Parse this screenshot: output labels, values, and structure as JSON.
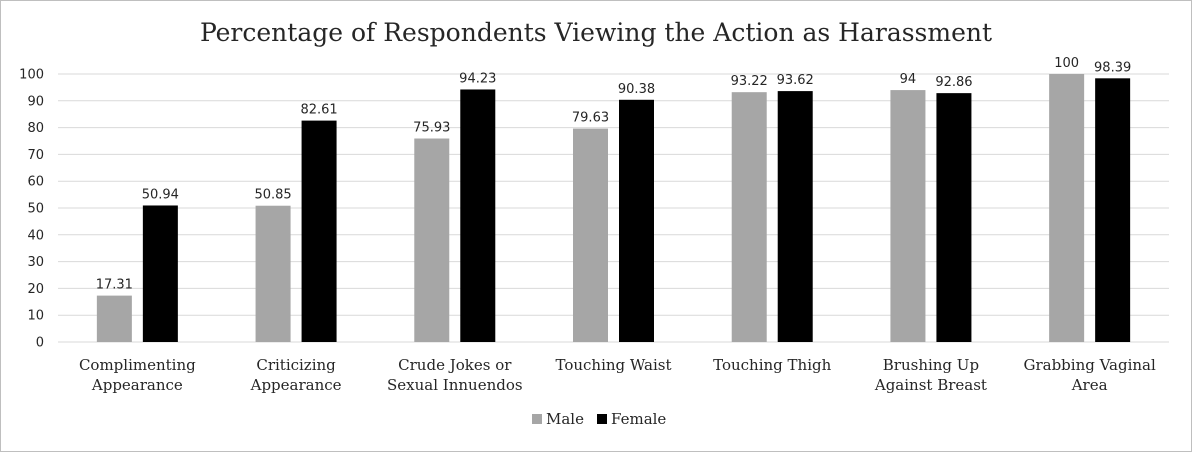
{
  "chart_data": {
    "type": "bar",
    "title": "Percentage of Respondents Viewing the Action as Harassment",
    "xlabel": "",
    "ylabel": "",
    "ylim": [
      0,
      100
    ],
    "yticks": [
      "0",
      "10",
      "20",
      "30",
      "40",
      "50",
      "60",
      "70",
      "80",
      "90",
      "100"
    ],
    "categories": [
      [
        "Complimenting",
        "Appearance"
      ],
      [
        "Criticizing",
        "Appearance"
      ],
      [
        "Crude Jokes or",
        "Sexual Innuendos"
      ],
      [
        "Touching Waist"
      ],
      [
        "Touching Thigh"
      ],
      [
        "Brushing Up",
        "Against Breast"
      ],
      [
        "Grabbing Vaginal",
        "Area"
      ]
    ],
    "series": [
      {
        "name": "Male",
        "color": "#a6a6a6",
        "values": [
          17.31,
          50.85,
          75.93,
          79.63,
          93.22,
          94,
          100
        ],
        "labels": [
          "17.31",
          "50.85",
          "75.93",
          "79.63",
          "93.22",
          "94",
          "100"
        ]
      },
      {
        "name": "Female",
        "color": "#000000",
        "values": [
          50.94,
          82.61,
          94.23,
          90.38,
          93.62,
          92.86,
          98.39
        ],
        "labels": [
          "50.94",
          "82.61",
          "94.23",
          "90.38",
          "93.62",
          "92.86",
          "98.39"
        ]
      }
    ],
    "grid": true,
    "legend_position": "bottom"
  }
}
